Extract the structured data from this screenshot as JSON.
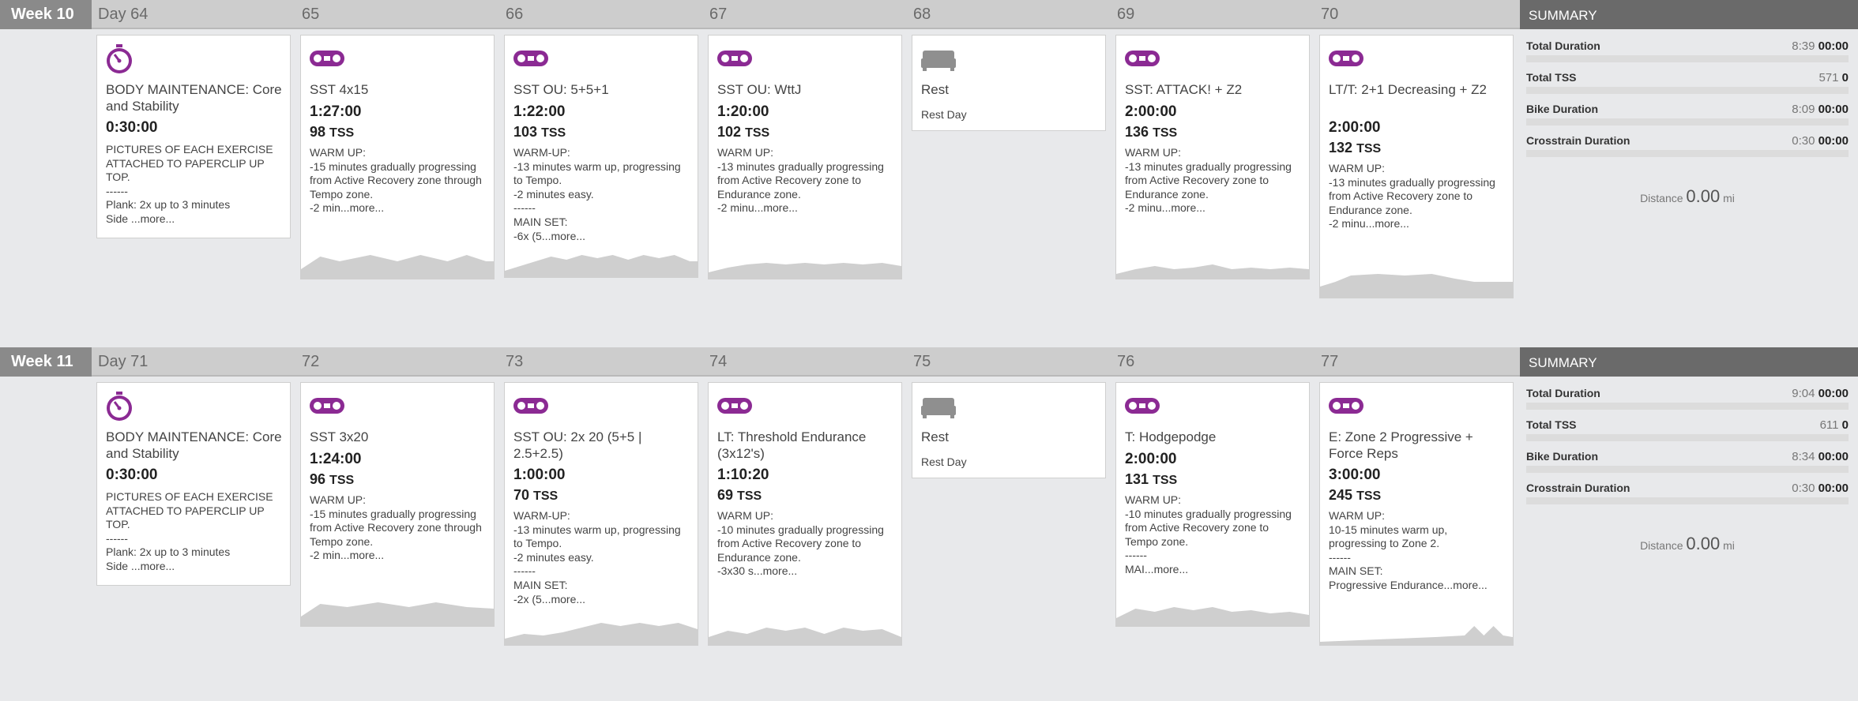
{
  "rows": [
    {
      "week": "Week 10",
      "days": [
        "Day 64",
        "65",
        "66",
        "67",
        "68",
        "69",
        "70"
      ],
      "cards": [
        {
          "type": "strength",
          "title": "BODY MAINTENANCE: Core and Stability",
          "duration": "0:30:00",
          "tss": "",
          "desc": "PICTURES OF EACH EXERCISE ATTACHED TO PAPERCLIP UP TOP.\n------\nPlank: 2x up to 3 minutes\nSide ...",
          "more": "more..."
        },
        {
          "type": "bike",
          "title": "SST 4x15",
          "duration": "1:27:00",
          "tss": "98",
          "desc": "WARM UP:\n-15 minutes gradually progressing from Active Recovery zone through Tempo zone.\n-2 min...",
          "more": "more...",
          "graph": [
            [
              0,
              12
            ],
            [
              10,
              28
            ],
            [
              20,
              22
            ],
            [
              36,
              30
            ],
            [
              50,
              22
            ],
            [
              62,
              30
            ],
            [
              76,
              22
            ],
            [
              86,
              30
            ],
            [
              96,
              22
            ],
            [
              100,
              22
            ]
          ]
        },
        {
          "type": "bike",
          "title": "SST OU: 5+5+1",
          "duration": "1:22:00",
          "tss": "103",
          "desc": "WARM-UP:\n-13 minutes warm up, progressing to Tempo.\n-2 minutes easy.\n------\nMAIN SET:\n-6x (5...",
          "more": "more...",
          "graph": [
            [
              0,
              8
            ],
            [
              8,
              14
            ],
            [
              16,
              20
            ],
            [
              24,
              26
            ],
            [
              32,
              22
            ],
            [
              40,
              28
            ],
            [
              48,
              24
            ],
            [
              56,
              28
            ],
            [
              64,
              22
            ],
            [
              72,
              28
            ],
            [
              80,
              24
            ],
            [
              88,
              28
            ],
            [
              96,
              20
            ],
            [
              100,
              20
            ]
          ]
        },
        {
          "type": "bike",
          "title": "SST OU: WttJ",
          "duration": "1:20:00",
          "tss": "102",
          "desc": "WARM UP:\n-13 minutes gradually progressing from Active Recovery zone to Endurance zone.\n-2 minu...",
          "more": "more...",
          "graph": [
            [
              0,
              8
            ],
            [
              10,
              14
            ],
            [
              20,
              18
            ],
            [
              30,
              20
            ],
            [
              40,
              18
            ],
            [
              50,
              20
            ],
            [
              60,
              18
            ],
            [
              70,
              20
            ],
            [
              80,
              18
            ],
            [
              90,
              20
            ],
            [
              100,
              16
            ]
          ]
        },
        {
          "type": "rest",
          "title": "Rest",
          "rest": "Rest Day"
        },
        {
          "type": "bike",
          "title": "SST: ATTACK! + Z2",
          "duration": "2:00:00",
          "tss": "136",
          "desc": "WARM UP:\n-13 minutes gradually progressing from Active Recovery zone to Endurance zone.\n-2 minu...",
          "more": "more...",
          "graph": [
            [
              0,
              6
            ],
            [
              10,
              12
            ],
            [
              20,
              16
            ],
            [
              30,
              12
            ],
            [
              40,
              14
            ],
            [
              50,
              18
            ],
            [
              60,
              12
            ],
            [
              70,
              14
            ],
            [
              80,
              12
            ],
            [
              90,
              14
            ],
            [
              100,
              12
            ]
          ]
        },
        {
          "type": "bike",
          "title": "LT/T: 2+1 Decreasing + Z2",
          "duration": "2:00:00",
          "tss": "132",
          "desc": "WARM UP:\n-13 minutes gradually progressing from Active Recovery zone to Endurance zone.\n-2 minu...",
          "more": "more...",
          "graph": [
            [
              0,
              14
            ],
            [
              8,
              20
            ],
            [
              16,
              28
            ],
            [
              30,
              30
            ],
            [
              44,
              28
            ],
            [
              58,
              30
            ],
            [
              70,
              24
            ],
            [
              80,
              20
            ],
            [
              100,
              20
            ]
          ]
        }
      ],
      "summary": {
        "header": "SUMMARY",
        "rows": [
          {
            "k": "Total Duration",
            "planned": "8:39",
            "actual": "00:00",
            "fill": 0
          },
          {
            "k": "Total TSS",
            "planned": "571",
            "actual": "0",
            "fill": 0
          },
          {
            "k": "Bike Duration",
            "planned": "8:09",
            "actual": "00:00",
            "fill": 0
          },
          {
            "k": "Crosstrain Duration",
            "planned": "0:30",
            "actual": "00:00",
            "fill": 0
          }
        ],
        "distance_label": "Distance",
        "distance": "0.00",
        "unit": "mi"
      }
    },
    {
      "week": "Week 11",
      "days": [
        "Day 71",
        "72",
        "73",
        "74",
        "75",
        "76",
        "77"
      ],
      "cards": [
        {
          "type": "strength",
          "title": "BODY MAINTENANCE: Core and Stability",
          "duration": "0:30:00",
          "tss": "",
          "desc": "PICTURES OF EACH EXERCISE ATTACHED TO PAPERCLIP UP TOP.\n------\nPlank: 2x up to 3 minutes\nSide ...",
          "more": "more..."
        },
        {
          "type": "bike",
          "title": "SST 3x20",
          "duration": "1:24:00",
          "tss": "96",
          "desc": "WARM UP:\n-15 minutes gradually progressing from Active Recovery zone through Tempo zone.\n-2 min...",
          "more": "more...",
          "graph": [
            [
              0,
              12
            ],
            [
              10,
              28
            ],
            [
              24,
              24
            ],
            [
              40,
              30
            ],
            [
              56,
              24
            ],
            [
              70,
              30
            ],
            [
              86,
              24
            ],
            [
              100,
              22
            ]
          ]
        },
        {
          "type": "bike",
          "title": "SST OU: 2x 20 (5+5 | 2.5+2.5)",
          "duration": "1:00:00",
          "tss": "70",
          "desc": "WARM-UP:\n-13 minutes warm up, progressing to Tempo.\n-2 minutes easy.\n------\nMAIN SET:\n-2x (5...",
          "more": "more...",
          "graph": [
            [
              0,
              8
            ],
            [
              10,
              14
            ],
            [
              20,
              12
            ],
            [
              30,
              16
            ],
            [
              40,
              22
            ],
            [
              50,
              28
            ],
            [
              60,
              24
            ],
            [
              70,
              28
            ],
            [
              80,
              24
            ],
            [
              90,
              28
            ],
            [
              100,
              20
            ]
          ]
        },
        {
          "type": "bike",
          "title": "LT: Threshold Endurance (3x12's)",
          "duration": "1:10:20",
          "tss": "69",
          "desc": "WARM UP:\n-10 minutes gradually progressing from Active Recovery zone to Endurance zone.\n-3x30 s...",
          "more": "more...",
          "graph": [
            [
              0,
              10
            ],
            [
              10,
              18
            ],
            [
              20,
              14
            ],
            [
              30,
              22
            ],
            [
              40,
              18
            ],
            [
              50,
              22
            ],
            [
              60,
              14
            ],
            [
              70,
              22
            ],
            [
              80,
              18
            ],
            [
              90,
              20
            ],
            [
              100,
              10
            ]
          ]
        },
        {
          "type": "rest",
          "title": "Rest",
          "rest": "Rest Day"
        },
        {
          "type": "bike",
          "title": "T: Hodgepodge",
          "duration": "2:00:00",
          "tss": "131",
          "desc": "WARM UP:\n-10 minutes gradually progressing from Active Recovery zone to Tempo zone.\n------\nMAI...",
          "more": "more...",
          "graph": [
            [
              0,
              10
            ],
            [
              10,
              22
            ],
            [
              20,
              18
            ],
            [
              30,
              24
            ],
            [
              40,
              20
            ],
            [
              50,
              24
            ],
            [
              60,
              18
            ],
            [
              70,
              20
            ],
            [
              80,
              16
            ],
            [
              90,
              18
            ],
            [
              100,
              14
            ]
          ]
        },
        {
          "type": "bike",
          "title": "E: Zone 2 Progressive + Force Reps",
          "duration": "3:00:00",
          "tss": "245",
          "desc": "WARM UP:\n10-15 minutes warm up, progressing to Zone 2.\n------\nMAIN SET:\nProgressive Endurance...",
          "more": "more...",
          "graph": [
            [
              0,
              4
            ],
            [
              20,
              6
            ],
            [
              40,
              8
            ],
            [
              60,
              10
            ],
            [
              75,
              12
            ],
            [
              80,
              24
            ],
            [
              85,
              12
            ],
            [
              90,
              24
            ],
            [
              95,
              12
            ],
            [
              100,
              10
            ]
          ]
        }
      ],
      "summary": {
        "header": "SUMMARY",
        "rows": [
          {
            "k": "Total Duration",
            "planned": "9:04",
            "actual": "00:00",
            "fill": 0
          },
          {
            "k": "Total TSS",
            "planned": "611",
            "actual": "0",
            "fill": 0
          },
          {
            "k": "Bike Duration",
            "planned": "8:34",
            "actual": "00:00",
            "fill": 0
          },
          {
            "k": "Crosstrain Duration",
            "planned": "0:30",
            "actual": "00:00",
            "fill": 0
          }
        ],
        "distance_label": "Distance",
        "distance": "0.00",
        "unit": "mi"
      }
    }
  ],
  "labels": {
    "tss_unit": "TSS"
  },
  "icons": {
    "strength": "stopwatch-icon",
    "bike": "bike-chain-icon",
    "rest": "bed-icon"
  },
  "colors": {
    "accent": "#8b2a93",
    "header": "#cdcdcd",
    "summary_header": "#6a6a6a"
  }
}
